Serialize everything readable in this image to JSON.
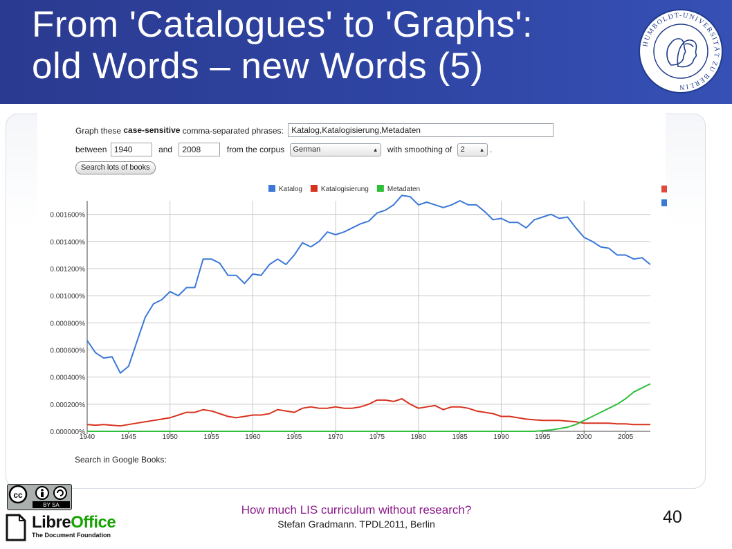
{
  "slide": {
    "title_line1": "From 'Catalogues' to 'Graphs':",
    "title_line2": "old Words – new Words (5)",
    "footer_line1": "How much LIS curriculum without research?",
    "footer_line2": "Stefan Gradmann. TPDL2011, Berlin",
    "page_number": "40"
  },
  "logos": {
    "seal_text": "HUMBOLDT-UNIVERSITÄT ZU BERLIN",
    "cc_text": "BY SA",
    "libreoffice_a": "Libre",
    "libreoffice_b": "Office",
    "libreoffice_sub": "The Document Foundation"
  },
  "ngram_form": {
    "prompt_pre": "Graph these ",
    "prompt_bold": "case-sensitive",
    "prompt_post": " comma-separated phrases:",
    "phrases": "Katalog,Katalogisierung,Metadaten",
    "between_label": "between",
    "year_from": "1940",
    "and_label": "and",
    "year_to": "2008",
    "corpus_label": "from the corpus",
    "corpus": "German",
    "smoothing_label": "with smoothing of",
    "smoothing": "2",
    "period": ".",
    "search_button": "Search lots of books",
    "google_books_label": "Search in Google Books:"
  },
  "colors": {
    "header_bg": "#2f45a3",
    "katalog": "#3b78d8",
    "katalogisierung": "#d8321e",
    "metadaten": "#2fbf3a",
    "footer_text": "#8a1a8a"
  },
  "chart_data": {
    "type": "line",
    "ylim": [
      0,
      0.0017
    ],
    "xlim": [
      1940,
      2008
    ],
    "x_ticks": [
      1940,
      1945,
      1950,
      1955,
      1960,
      1965,
      1970,
      1975,
      1980,
      1985,
      1990,
      1995,
      2000,
      2005
    ],
    "y_ticks": [
      0,
      0.0002,
      0.0004,
      0.0006,
      0.0008,
      0.001,
      0.0012,
      0.0014,
      0.0016
    ],
    "y_tick_labels": [
      "0.000000%",
      "0.000200%",
      "0.000400%",
      "0.000600%",
      "0.000800%",
      "0.001000%",
      "0.001200%",
      "0.001400%",
      "0.001600%"
    ],
    "grid": true,
    "legend_position": "top-center",
    "x": [
      1940,
      1941,
      1942,
      1943,
      1944,
      1945,
      1946,
      1947,
      1948,
      1949,
      1950,
      1951,
      1952,
      1953,
      1954,
      1955,
      1956,
      1957,
      1958,
      1959,
      1960,
      1961,
      1962,
      1963,
      1964,
      1965,
      1966,
      1967,
      1968,
      1969,
      1970,
      1971,
      1972,
      1973,
      1974,
      1975,
      1976,
      1977,
      1978,
      1979,
      1980,
      1981,
      1982,
      1983,
      1984,
      1985,
      1986,
      1987,
      1988,
      1989,
      1990,
      1991,
      1992,
      1993,
      1994,
      1995,
      1996,
      1997,
      1998,
      1999,
      2000,
      2001,
      2002,
      2003,
      2004,
      2005,
      2006,
      2007,
      2008
    ],
    "series": [
      {
        "name": "Katalog",
        "color": "#3b78d8",
        "values": [
          0.00067,
          0.00058,
          0.00054,
          0.00055,
          0.00043,
          0.00048,
          0.00066,
          0.00084,
          0.00094,
          0.00097,
          0.00103,
          0.001,
          0.00106,
          0.00106,
          0.00127,
          0.00127,
          0.00124,
          0.00115,
          0.00115,
          0.00109,
          0.00116,
          0.00115,
          0.00123,
          0.00127,
          0.00123,
          0.0013,
          0.00139,
          0.00136,
          0.0014,
          0.00147,
          0.00145,
          0.00147,
          0.0015,
          0.00153,
          0.00155,
          0.00161,
          0.00163,
          0.00167,
          0.00174,
          0.00173,
          0.00167,
          0.00169,
          0.00167,
          0.00165,
          0.00167,
          0.0017,
          0.00167,
          0.00167,
          0.00162,
          0.00156,
          0.00157,
          0.00154,
          0.00154,
          0.0015,
          0.00156,
          0.00158,
          0.0016,
          0.00157,
          0.00158,
          0.0015,
          0.00143,
          0.0014,
          0.00136,
          0.00135,
          0.0013,
          0.0013,
          0.00127,
          0.00128,
          0.00123
        ]
      },
      {
        "name": "Katalogisierung",
        "color": "#d8321e",
        "values": [
          5e-05,
          4.5e-05,
          5e-05,
          4.5e-05,
          4e-05,
          5e-05,
          6e-05,
          7e-05,
          8e-05,
          9e-05,
          0.0001,
          0.00012,
          0.00014,
          0.00014,
          0.00016,
          0.00015,
          0.00013,
          0.00011,
          0.0001,
          0.00011,
          0.00012,
          0.00012,
          0.00013,
          0.00016,
          0.00015,
          0.00014,
          0.00017,
          0.00018,
          0.00017,
          0.00017,
          0.00018,
          0.00017,
          0.00017,
          0.00018,
          0.0002,
          0.00023,
          0.00023,
          0.00022,
          0.00024,
          0.0002,
          0.00017,
          0.00018,
          0.00019,
          0.00016,
          0.00018,
          0.00018,
          0.00017,
          0.00015,
          0.00014,
          0.00013,
          0.00011,
          0.00011,
          0.0001,
          9e-05,
          8.5e-05,
          8e-05,
          8e-05,
          8e-05,
          7.5e-05,
          7e-05,
          6e-05,
          6e-05,
          6e-05,
          6e-05,
          5.5e-05,
          5.5e-05,
          5e-05,
          5e-05,
          5e-05
        ]
      },
      {
        "name": "Metadaten",
        "color": "#2fbf3a",
        "values": [
          0,
          0,
          0,
          0,
          0,
          0,
          0,
          0,
          0,
          0,
          0,
          0,
          0,
          0,
          0,
          0,
          0,
          0,
          0,
          0,
          0,
          0,
          0,
          0,
          0,
          0,
          0,
          0,
          0,
          0,
          0,
          0,
          0,
          0,
          0,
          0,
          0,
          0,
          0,
          0,
          0,
          0,
          0,
          0,
          0,
          0,
          0,
          0,
          0,
          0,
          0,
          0,
          0,
          0,
          0,
          5e-06,
          1e-05,
          2e-05,
          3e-05,
          5e-05,
          8e-05,
          0.00011,
          0.00014,
          0.00017,
          0.0002,
          0.00024,
          0.00029,
          0.00032,
          0.00035
        ]
      }
    ]
  }
}
